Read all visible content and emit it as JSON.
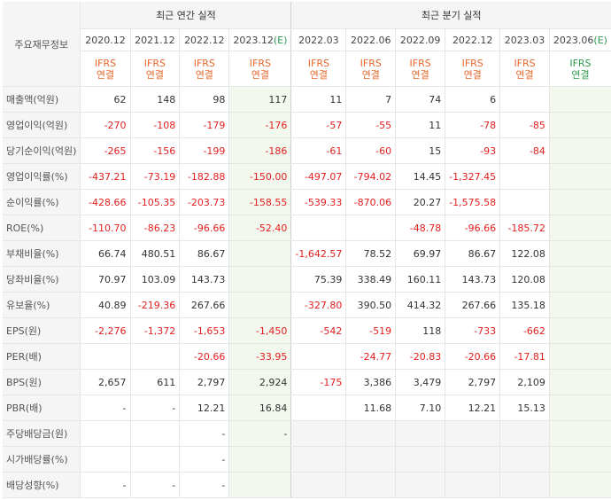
{
  "table": {
    "row_header": "주요재무정보",
    "annual_group": "최근 연간 실적",
    "quarter_group": "최근 분기 실적",
    "annual_periods": [
      "2020.12",
      "2021.12",
      "2022.12",
      "2023.12(E)"
    ],
    "quarter_periods": [
      "2022.03",
      "2022.06",
      "2022.09",
      "2022.12",
      "2023.03",
      "2023.06(E)"
    ],
    "basis_line1": "IFRS",
    "basis_line2": "연결",
    "rows": [
      {
        "label": "매출액(억원)",
        "values": [
          "62",
          "148",
          "98",
          "117",
          "11",
          "7",
          "74",
          "6",
          "",
          ""
        ]
      },
      {
        "label": "영업이익(억원)",
        "values": [
          "-270",
          "-108",
          "-179",
          "-176",
          "-57",
          "-55",
          "11",
          "-78",
          "-85",
          ""
        ]
      },
      {
        "label": "당기순이익(억원)",
        "values": [
          "-265",
          "-156",
          "-199",
          "-186",
          "-61",
          "-60",
          "15",
          "-93",
          "-84",
          ""
        ]
      },
      {
        "label": "영업이익률(%)",
        "values": [
          "-437.21",
          "-73.19",
          "-182.88",
          "-150.00",
          "-497.07",
          "-794.02",
          "14.45",
          "-1,327.45",
          "",
          ""
        ]
      },
      {
        "label": "순이익률(%)",
        "values": [
          "-428.66",
          "-105.35",
          "-203.73",
          "-158.55",
          "-539.33",
          "-870.06",
          "20.27",
          "-1,575.58",
          "",
          ""
        ]
      },
      {
        "label": "ROE(%)",
        "values": [
          "-110.70",
          "-86.23",
          "-96.66",
          "-52.40",
          "",
          "",
          "-48.78",
          "-96.66",
          "-185.72",
          ""
        ]
      },
      {
        "label": "부채비율(%)",
        "values": [
          "66.74",
          "480.51",
          "86.67",
          "",
          "-1,642.57",
          "78.52",
          "69.97",
          "86.67",
          "122.08",
          ""
        ]
      },
      {
        "label": "당좌비율(%)",
        "values": [
          "70.97",
          "103.09",
          "143.73",
          "",
          "75.39",
          "338.49",
          "160.11",
          "143.73",
          "120.08",
          ""
        ]
      },
      {
        "label": "유보율(%)",
        "values": [
          "40.89",
          "-219.36",
          "267.66",
          "",
          "-327.80",
          "390.50",
          "414.32",
          "267.66",
          "135.18",
          ""
        ]
      },
      {
        "label": "EPS(원)",
        "values": [
          "-2,276",
          "-1,372",
          "-1,653",
          "-1,450",
          "-542",
          "-519",
          "118",
          "-733",
          "-662",
          ""
        ]
      },
      {
        "label": "PER(배)",
        "values": [
          "",
          "",
          "-20.66",
          "-33.95",
          "",
          "-24.77",
          "-20.83",
          "-20.66",
          "-17.81",
          ""
        ]
      },
      {
        "label": "BPS(원)",
        "values": [
          "2,657",
          "611",
          "2,797",
          "2,924",
          "-175",
          "3,386",
          "3,479",
          "2,797",
          "2,109",
          ""
        ]
      },
      {
        "label": "PBR(배)",
        "values": [
          "-",
          "-",
          "12.21",
          "16.84",
          "",
          "11.68",
          "7.10",
          "12.21",
          "15.13",
          ""
        ]
      },
      {
        "label": "주당배당금(원)",
        "values": [
          "",
          "",
          "-",
          "-",
          "",
          "",
          "",
          "",
          "",
          ""
        ]
      },
      {
        "label": "시가배당률(%)",
        "values": [
          "",
          "",
          "-",
          "",
          "",
          "",
          "",
          "",
          "",
          ""
        ]
      },
      {
        "label": "배당성향(%)",
        "values": [
          "-",
          "-",
          "-",
          "",
          "",
          "",
          "",
          "",
          "",
          ""
        ]
      }
    ]
  },
  "colors": {
    "negative": "#e21f1f",
    "ifrs": "#e8672b",
    "estimate_period": "#2f9a4e",
    "estimate_bg": "#f3f8ef",
    "header_bg": "#f5f5f5"
  }
}
